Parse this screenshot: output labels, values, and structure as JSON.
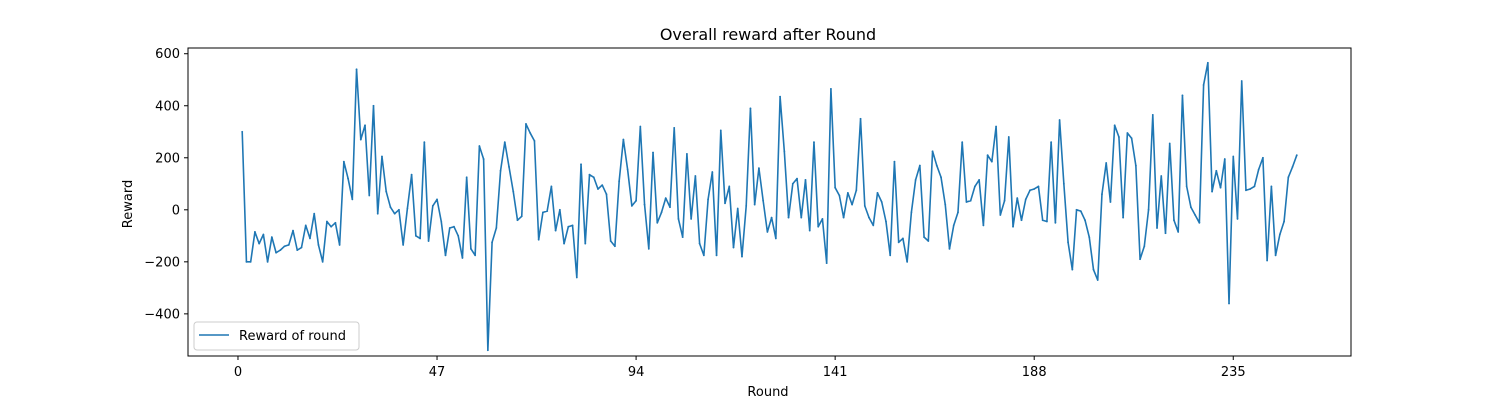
{
  "chart_data": {
    "type": "line",
    "title": "Overall reward after Round",
    "xlabel": "Round",
    "ylabel": "Reward",
    "xlim": [
      -11.8,
      262.8
    ],
    "ylim": [
      -562,
      622
    ],
    "xticks": [
      0,
      47,
      94,
      141,
      188,
      235
    ],
    "yticks": [
      -400,
      -200,
      0,
      200,
      400,
      600
    ],
    "legend": {
      "location": "lower-left"
    },
    "grid": false,
    "series": [
      {
        "name": "Reward of round",
        "color": "#1f77b4",
        "x": [
          1,
          2,
          3,
          4,
          5,
          6,
          7,
          8,
          9,
          10,
          11,
          12,
          13,
          14,
          15,
          16,
          17,
          18,
          19,
          20,
          21,
          22,
          23,
          24,
          25,
          26,
          27,
          28,
          29,
          30,
          31,
          32,
          33,
          34,
          35,
          36,
          37,
          38,
          39,
          40,
          41,
          42,
          43,
          44,
          45,
          46,
          47,
          48,
          49,
          50,
          51,
          52,
          53,
          54,
          55,
          56,
          57,
          58,
          59,
          60,
          61,
          62,
          63,
          64,
          65,
          66,
          67,
          68,
          69,
          70,
          71,
          72,
          73,
          74,
          75,
          76,
          77,
          78,
          79,
          80,
          81,
          82,
          83,
          84,
          85,
          86,
          87,
          88,
          89,
          90,
          91,
          92,
          93,
          94,
          95,
          96,
          97,
          98,
          99,
          100,
          101,
          102,
          103,
          104,
          105,
          106,
          107,
          108,
          109,
          110,
          111,
          112,
          113,
          114,
          115,
          116,
          117,
          118,
          119,
          120,
          121,
          122,
          123,
          124,
          125,
          126,
          127,
          128,
          129,
          130,
          131,
          132,
          133,
          134,
          135,
          136,
          137,
          138,
          139,
          140,
          141,
          142,
          143,
          144,
          145,
          146,
          147,
          148,
          149,
          150,
          151,
          152,
          153,
          154,
          155,
          156,
          157,
          158,
          159,
          160,
          161,
          162,
          163,
          164,
          165,
          166,
          167,
          168,
          169,
          170,
          171,
          172,
          173,
          174,
          175,
          176,
          177,
          178,
          179,
          180,
          181,
          182,
          183,
          184,
          185,
          186,
          187,
          188,
          189,
          190,
          191,
          192,
          193,
          194,
          195,
          196,
          197,
          198,
          199,
          200,
          201,
          202,
          203,
          204,
          205,
          206,
          207,
          208,
          209,
          210,
          211,
          212,
          213,
          214,
          215,
          216,
          217,
          218,
          219,
          220,
          221,
          222,
          223,
          224,
          225,
          226,
          227,
          228,
          229,
          230,
          231,
          232,
          233,
          234,
          235,
          236,
          237,
          238,
          239,
          240,
          241,
          242,
          243,
          244,
          245,
          246,
          247,
          248,
          249,
          250
        ],
        "values": [
          300,
          -200,
          -200,
          -85,
          -130,
          -95,
          -200,
          -105,
          -165,
          -155,
          -140,
          -135,
          -80,
          -155,
          -145,
          -60,
          -110,
          -15,
          -135,
          -200,
          -45,
          -65,
          -50,
          -135,
          185,
          120,
          40,
          540,
          270,
          325,
          55,
          400,
          -15,
          205,
          70,
          10,
          -15,
          0,
          -135,
          5,
          135,
          -100,
          -110,
          260,
          -120,
          15,
          40,
          -45,
          -175,
          -70,
          -65,
          -100,
          -185,
          125,
          -150,
          -175,
          245,
          195,
          -540,
          -125,
          -70,
          150,
          260,
          165,
          70,
          -40,
          -25,
          330,
          295,
          265,
          -115,
          -10,
          -5,
          90,
          -80,
          0,
          -130,
          -65,
          -60,
          -260,
          175,
          -130,
          135,
          125,
          80,
          95,
          60,
          -120,
          -140,
          110,
          270,
          155,
          15,
          35,
          320,
          20,
          -150,
          220,
          -50,
          -10,
          45,
          10,
          315,
          -35,
          -105,
          215,
          -35,
          130,
          -130,
          -175,
          40,
          145,
          -175,
          305,
          25,
          90,
          -145,
          5,
          -180,
          15,
          390,
          20,
          160,
          35,
          -85,
          -30,
          -110,
          435,
          225,
          -30,
          100,
          120,
          -30,
          115,
          -80,
          260,
          -65,
          -35,
          -205,
          465,
          85,
          55,
          -30,
          65,
          20,
          75,
          350,
          15,
          -30,
          -60,
          65,
          30,
          -45,
          -175,
          185,
          -125,
          -110,
          -200,
          -10,
          115,
          170,
          -105,
          -120,
          225,
          170,
          125,
          20,
          -150,
          -60,
          -10,
          260,
          30,
          35,
          90,
          115,
          -60,
          210,
          185,
          320,
          -20,
          35,
          280,
          -65,
          45,
          -40,
          40,
          75,
          80,
          90,
          -40,
          -45,
          260,
          -50,
          345,
          100,
          -125,
          -230,
          0,
          -5,
          -40,
          -105,
          -230,
          -270,
          60,
          180,
          30,
          325,
          280,
          -30,
          295,
          275,
          170,
          -190,
          -140,
          0,
          365,
          -70,
          130,
          -90,
          255,
          -40,
          -85,
          440,
          90,
          10,
          -20,
          -50,
          480,
          565,
          70,
          150,
          85,
          195,
          -360,
          205,
          -35,
          495,
          75,
          80,
          90,
          155,
          200,
          -195,
          90,
          -175,
          -95,
          -45,
          125,
          165,
          210
        ]
      }
    ]
  }
}
